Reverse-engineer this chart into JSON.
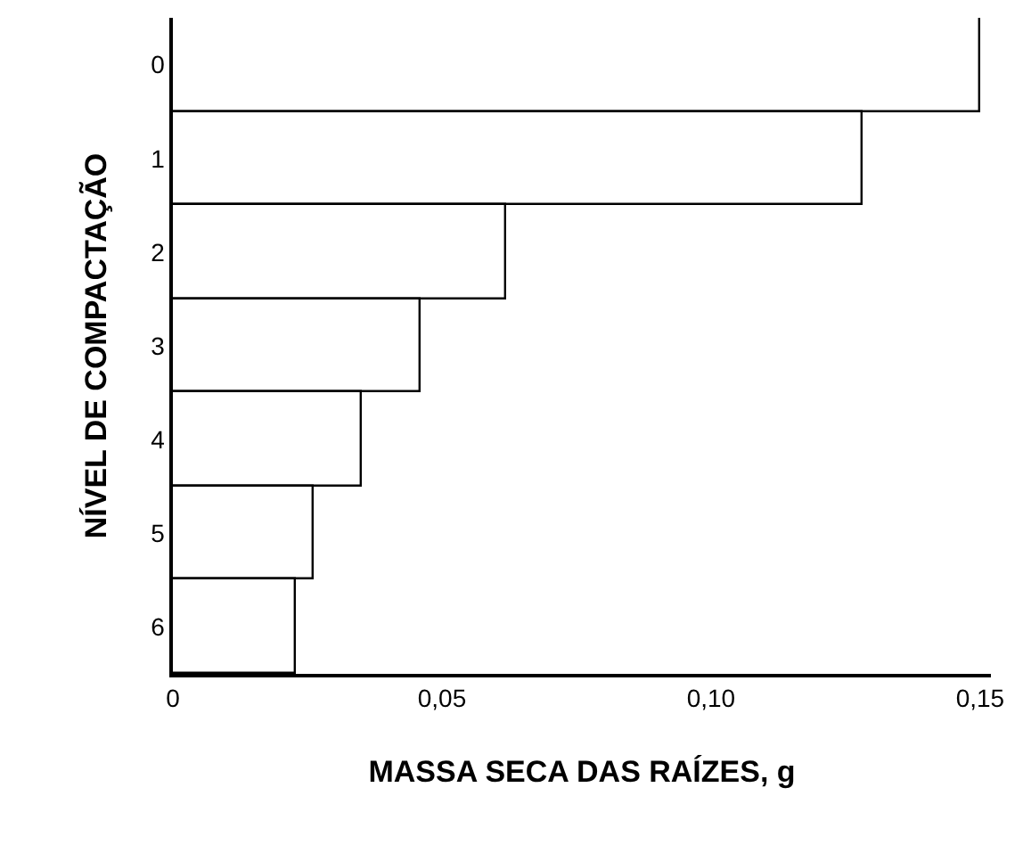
{
  "chart_data": {
    "type": "bar",
    "orientation": "horizontal",
    "xlabel": "MASSA SECA DAS RAÍZES, g",
    "ylabel": "NÍVEL DE COMPACTAÇÃO",
    "categories": [
      "0",
      "1",
      "2",
      "3",
      "4",
      "5",
      "6"
    ],
    "series": [
      {
        "color": "#ffffff",
        "values": [
          0.15,
          0.128,
          0.062,
          0.046,
          0.035,
          0.026,
          0.023
        ]
      }
    ],
    "xlim": [
      0,
      0.152
    ],
    "xticks": [
      0,
      {
        "value": 0.05,
        "label": "0,05"
      },
      {
        "value": 0.1,
        "label": "0,10"
      },
      {
        "value": 0.15,
        "label": "0,15"
      }
    ],
    "legend": false
  }
}
